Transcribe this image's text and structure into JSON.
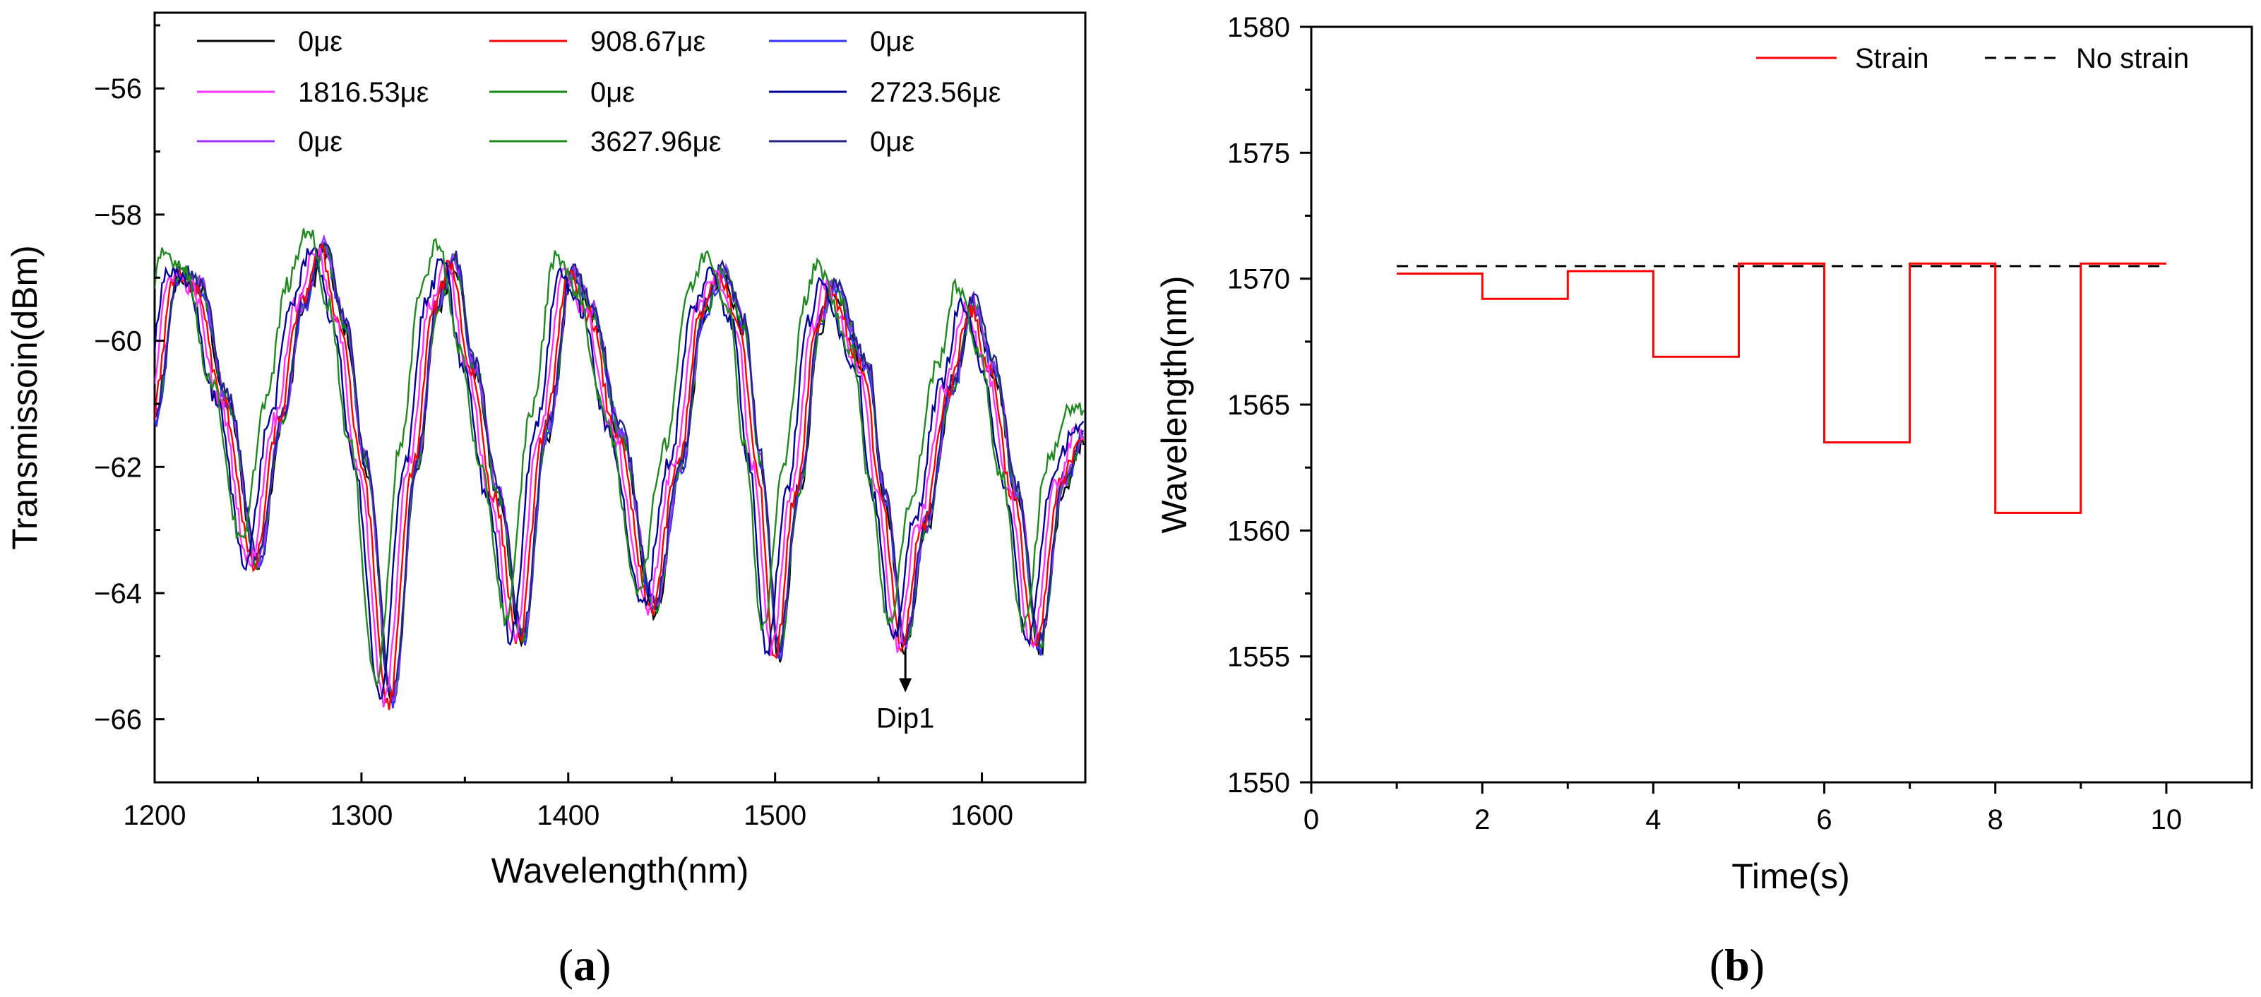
{
  "chart_data": [
    {
      "type": "line",
      "panel_label": "a",
      "title": "",
      "xlabel": "Wavelength(nm)",
      "ylabel": "Transmissoin(dBm)",
      "xlim": [
        1200,
        1650
      ],
      "ylim": [
        -67,
        -54.8
      ],
      "xticks": [
        1200,
        1300,
        1400,
        1500,
        1600
      ],
      "yticks": [
        -66,
        -64,
        -62,
        -60,
        -58,
        -56
      ],
      "legend_placement": "top-left, 3 columns",
      "annotation": {
        "text": "Dip1",
        "x": 1563,
        "y_from": -64.7,
        "y_to": -65.2
      },
      "series": [
        {
          "name": "0με",
          "color": "#000000",
          "strain": 0,
          "shift": 0
        },
        {
          "name": "908.67με",
          "color": "#ff0000",
          "strain": 908.67,
          "shift": -0.9
        },
        {
          "name": "0με",
          "color": "#3333ff",
          "strain": 0,
          "shift": 0
        },
        {
          "name": "1816.53με",
          "color": "#ff33ff",
          "strain": 1816.53,
          "shift": -1.8
        },
        {
          "name": "0με",
          "color": "#118811",
          "strain": 0,
          "shift": 0
        },
        {
          "name": "2723.56με",
          "color": "#000099",
          "strain": 2723.56,
          "shift": -2.7
        },
        {
          "name": "0με",
          "color": "#9933ff",
          "strain": 0,
          "shift": 0
        },
        {
          "name": "3627.96με",
          "color": "#228822",
          "strain": 3627.96,
          "shift": -3.6
        },
        {
          "name": "0με",
          "color": "#222288",
          "strain": 0,
          "shift": 0
        }
      ],
      "spectrum_points": [
        [
          1200,
          -61.3
        ],
        [
          1212,
          -59.0
        ],
        [
          1222,
          -59.2
        ],
        [
          1235,
          -61.0
        ],
        [
          1250,
          -63.6
        ],
        [
          1262,
          -61.3
        ],
        [
          1272,
          -59.5
        ],
        [
          1282,
          -58.6
        ],
        [
          1292,
          -59.8
        ],
        [
          1302,
          -62.0
        ],
        [
          1315,
          -65.8
        ],
        [
          1327,
          -62.0
        ],
        [
          1337,
          -59.5
        ],
        [
          1345,
          -58.8
        ],
        [
          1355,
          -60.5
        ],
        [
          1366,
          -62.5
        ],
        [
          1378,
          -64.8
        ],
        [
          1390,
          -61.5
        ],
        [
          1402,
          -59.0
        ],
        [
          1412,
          -59.6
        ],
        [
          1425,
          -61.5
        ],
        [
          1442,
          -64.3
        ],
        [
          1455,
          -62.0
        ],
        [
          1466,
          -59.6
        ],
        [
          1475,
          -59.0
        ],
        [
          1485,
          -59.8
        ],
        [
          1493,
          -62.0
        ],
        [
          1502,
          -65.0
        ],
        [
          1512,
          -62.4
        ],
        [
          1522,
          -59.8
        ],
        [
          1528,
          -59.2
        ],
        [
          1545,
          -60.5
        ],
        [
          1553,
          -62.5
        ],
        [
          1563,
          -64.9
        ],
        [
          1573,
          -63.0
        ],
        [
          1586,
          -60.8
        ],
        [
          1596,
          -59.5
        ],
        [
          1606,
          -60.5
        ],
        [
          1617,
          -62.5
        ],
        [
          1628,
          -64.9
        ],
        [
          1640,
          -62.3
        ],
        [
          1650,
          -61.5
        ]
      ]
    },
    {
      "type": "line",
      "panel_label": "b",
      "title": "",
      "xlabel": "Time(s)",
      "ylabel": "Wavelength(nm)",
      "xlim": [
        0,
        11
      ],
      "ylim": [
        1550,
        1580
      ],
      "xticks": [
        0,
        2,
        4,
        6,
        8,
        10
      ],
      "yticks": [
        1550,
        1555,
        1560,
        1565,
        1570,
        1575,
        1580
      ],
      "legend_placement": "top-right",
      "series": [
        {
          "name": "Strain",
          "color": "#ff0000",
          "style": "step",
          "steps": [
            {
              "x0": 1,
              "x1": 2,
              "y": 1570.2
            },
            {
              "x0": 2,
              "x1": 3,
              "y": 1569.2
            },
            {
              "x0": 3,
              "x1": 4,
              "y": 1570.3
            },
            {
              "x0": 4,
              "x1": 5,
              "y": 1566.9
            },
            {
              "x0": 5,
              "x1": 6,
              "y": 1570.6
            },
            {
              "x0": 6,
              "x1": 7,
              "y": 1563.5
            },
            {
              "x0": 7,
              "x1": 8,
              "y": 1570.6
            },
            {
              "x0": 8,
              "x1": 9,
              "y": 1560.7
            },
            {
              "x0": 9,
              "x1": 10,
              "y": 1570.6
            }
          ]
        },
        {
          "name": "No strain",
          "color": "#000000",
          "style": "dashed",
          "x": [
            1,
            10
          ],
          "y": [
            1570.5,
            1570.5
          ]
        }
      ]
    }
  ]
}
